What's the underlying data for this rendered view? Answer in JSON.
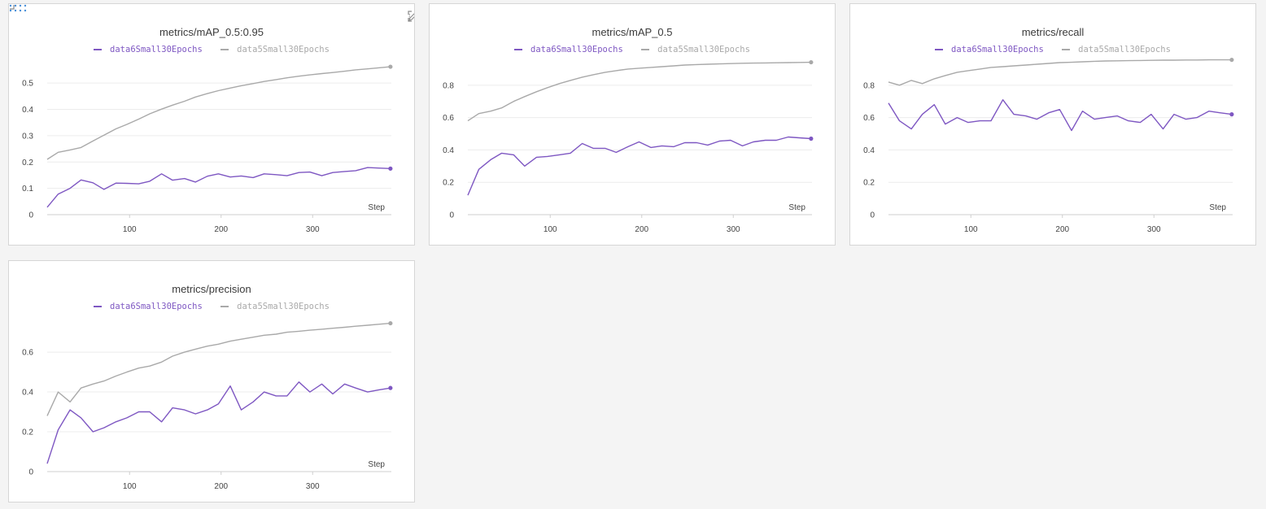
{
  "colors": {
    "series_a": "#7e57c2",
    "series_b": "#a9a9a9",
    "grid": "#ececec",
    "axis": "#cfcfcf",
    "text": "#444444",
    "handle": "#4a90d9",
    "tool_icon": "#8a8a8a"
  },
  "icons": {
    "drag": "drag-handle-icon",
    "edit": "pencil-icon",
    "fullscreen": "fullscreen-icon",
    "more": "more-vertical-icon"
  },
  "chart_data": [
    {
      "type": "line",
      "title": "metrics/mAP_0.5:0.95",
      "xlabel": "Step",
      "xlim": [
        10,
        386
      ],
      "ylim": [
        0,
        0.59
      ],
      "xticks": [
        100,
        200,
        300
      ],
      "yticks": [
        0,
        0.1,
        0.2,
        0.3,
        0.4,
        0.5
      ],
      "ytick_labels": [
        "0",
        "0.1",
        "0.2",
        "0.3",
        "0.4",
        "0.5"
      ],
      "grid": true,
      "legend": "top-center",
      "series": [
        {
          "name": "data6Small30Epochs",
          "x": [
            10,
            22,
            35,
            47,
            60,
            72,
            85,
            97,
            110,
            122,
            135,
            147,
            160,
            172,
            185,
            197,
            210,
            222,
            235,
            247,
            260,
            272,
            285,
            297,
            310,
            322,
            335,
            347,
            360,
            372,
            385
          ],
          "y": [
            0.028,
            0.078,
            0.1,
            0.132,
            0.121,
            0.096,
            0.12,
            0.119,
            0.117,
            0.127,
            0.155,
            0.131,
            0.137,
            0.124,
            0.146,
            0.155,
            0.143,
            0.147,
            0.141,
            0.155,
            0.152,
            0.148,
            0.16,
            0.162,
            0.148,
            0.16,
            0.164,
            0.167,
            0.179,
            0.177,
            0.175
          ]
        },
        {
          "name": "data5Small30Epochs",
          "x": [
            10,
            22,
            35,
            47,
            60,
            72,
            85,
            97,
            110,
            122,
            135,
            147,
            160,
            172,
            185,
            197,
            210,
            222,
            235,
            247,
            260,
            272,
            285,
            297,
            310,
            322,
            335,
            347,
            360,
            372,
            385
          ],
          "y": [
            0.21,
            0.237,
            0.246,
            0.255,
            0.28,
            0.302,
            0.326,
            0.343,
            0.363,
            0.383,
            0.401,
            0.416,
            0.431,
            0.447,
            0.46,
            0.471,
            0.481,
            0.49,
            0.498,
            0.506,
            0.513,
            0.52,
            0.526,
            0.531,
            0.536,
            0.54,
            0.545,
            0.55,
            0.554,
            0.558,
            0.562
          ]
        }
      ]
    },
    {
      "type": "line",
      "title": "metrics/mAP_0.5",
      "xlabel": "Step",
      "xlim": [
        10,
        386
      ],
      "ylim": [
        0,
        0.96
      ],
      "xticks": [
        100,
        200,
        300
      ],
      "yticks": [
        0,
        0.2,
        0.4,
        0.6,
        0.8
      ],
      "ytick_labels": [
        "0",
        "0.2",
        "0.4",
        "0.6",
        "0.8"
      ],
      "grid": true,
      "legend": "top-center",
      "series": [
        {
          "name": "data6Small30Epochs",
          "x": [
            10,
            22,
            35,
            47,
            60,
            72,
            85,
            97,
            110,
            122,
            135,
            147,
            160,
            172,
            185,
            197,
            210,
            222,
            235,
            247,
            260,
            272,
            285,
            297,
            310,
            322,
            335,
            347,
            360,
            372,
            385
          ],
          "y": [
            0.12,
            0.28,
            0.34,
            0.38,
            0.37,
            0.3,
            0.355,
            0.36,
            0.37,
            0.38,
            0.44,
            0.41,
            0.41,
            0.385,
            0.42,
            0.45,
            0.415,
            0.425,
            0.42,
            0.445,
            0.445,
            0.43,
            0.455,
            0.46,
            0.425,
            0.45,
            0.46,
            0.46,
            0.48,
            0.475,
            0.47
          ]
        },
        {
          "name": "data5Small30Epochs",
          "x": [
            10,
            22,
            35,
            47,
            60,
            72,
            85,
            97,
            110,
            122,
            135,
            147,
            160,
            172,
            185,
            197,
            210,
            222,
            235,
            247,
            260,
            272,
            285,
            297,
            310,
            322,
            335,
            347,
            360,
            372,
            385
          ],
          "y": [
            0.58,
            0.625,
            0.64,
            0.66,
            0.7,
            0.73,
            0.76,
            0.785,
            0.81,
            0.83,
            0.85,
            0.865,
            0.88,
            0.89,
            0.9,
            0.905,
            0.91,
            0.915,
            0.92,
            0.925,
            0.928,
            0.93,
            0.932,
            0.934,
            0.936,
            0.937,
            0.938,
            0.939,
            0.94,
            0.941,
            0.942
          ]
        }
      ]
    },
    {
      "type": "line",
      "title": "metrics/recall",
      "xlabel": "Step",
      "xlim": [
        10,
        386
      ],
      "ylim": [
        0,
        0.96
      ],
      "xticks": [
        100,
        200,
        300
      ],
      "yticks": [
        0,
        0.2,
        0.4,
        0.6,
        0.8
      ],
      "ytick_labels": [
        "0",
        "0.2",
        "0.4",
        "0.6",
        "0.8"
      ],
      "grid": true,
      "legend": "top-center",
      "series": [
        {
          "name": "data6Small30Epochs",
          "x": [
            10,
            22,
            35,
            47,
            60,
            72,
            85,
            97,
            110,
            122,
            135,
            147,
            160,
            172,
            185,
            197,
            210,
            222,
            235,
            247,
            260,
            272,
            285,
            297,
            310,
            322,
            335,
            347,
            360,
            372,
            385
          ],
          "y": [
            0.69,
            0.58,
            0.53,
            0.62,
            0.68,
            0.56,
            0.6,
            0.57,
            0.58,
            0.58,
            0.71,
            0.62,
            0.61,
            0.59,
            0.63,
            0.65,
            0.52,
            0.64,
            0.59,
            0.6,
            0.61,
            0.58,
            0.57,
            0.62,
            0.53,
            0.62,
            0.59,
            0.6,
            0.64,
            0.63,
            0.62
          ]
        },
        {
          "name": "data5Small30Epochs",
          "x": [
            10,
            22,
            35,
            47,
            60,
            72,
            85,
            97,
            110,
            122,
            135,
            147,
            160,
            172,
            185,
            197,
            210,
            222,
            235,
            247,
            260,
            272,
            285,
            297,
            310,
            322,
            335,
            347,
            360,
            372,
            385
          ],
          "y": [
            0.82,
            0.8,
            0.83,
            0.81,
            0.84,
            0.86,
            0.88,
            0.89,
            0.9,
            0.91,
            0.915,
            0.92,
            0.925,
            0.93,
            0.935,
            0.94,
            0.942,
            0.945,
            0.948,
            0.95,
            0.951,
            0.952,
            0.953,
            0.954,
            0.955,
            0.955,
            0.956,
            0.956,
            0.957,
            0.957,
            0.957
          ]
        }
      ]
    },
    {
      "type": "line",
      "title": "metrics/precision",
      "xlabel": "Step",
      "xlim": [
        10,
        386
      ],
      "ylim": [
        0,
        0.78
      ],
      "xticks": [
        100,
        200,
        300
      ],
      "yticks": [
        0,
        0.2,
        0.4,
        0.6
      ],
      "ytick_labels": [
        "0",
        "0.2",
        "0.4",
        "0.6"
      ],
      "grid": true,
      "legend": "top-center",
      "series": [
        {
          "name": "data6Small30Epochs",
          "x": [
            10,
            22,
            35,
            47,
            60,
            72,
            85,
            97,
            110,
            122,
            135,
            147,
            160,
            172,
            185,
            197,
            210,
            222,
            235,
            247,
            260,
            272,
            285,
            297,
            310,
            322,
            335,
            347,
            360,
            372,
            385
          ],
          "y": [
            0.04,
            0.21,
            0.31,
            0.27,
            0.2,
            0.22,
            0.25,
            0.27,
            0.3,
            0.3,
            0.25,
            0.32,
            0.31,
            0.29,
            0.31,
            0.34,
            0.43,
            0.31,
            0.35,
            0.4,
            0.38,
            0.38,
            0.45,
            0.4,
            0.44,
            0.39,
            0.44,
            0.42,
            0.4,
            0.41,
            0.42
          ]
        },
        {
          "name": "data5Small30Epochs",
          "x": [
            10,
            22,
            35,
            47,
            60,
            72,
            85,
            97,
            110,
            122,
            135,
            147,
            160,
            172,
            185,
            197,
            210,
            222,
            235,
            247,
            260,
            272,
            285,
            297,
            310,
            322,
            335,
            347,
            360,
            372,
            385
          ],
          "y": [
            0.28,
            0.4,
            0.35,
            0.42,
            0.44,
            0.455,
            0.48,
            0.5,
            0.52,
            0.53,
            0.55,
            0.58,
            0.6,
            0.615,
            0.63,
            0.64,
            0.655,
            0.665,
            0.675,
            0.685,
            0.69,
            0.7,
            0.705,
            0.71,
            0.715,
            0.72,
            0.725,
            0.73,
            0.735,
            0.74,
            0.745
          ]
        }
      ]
    }
  ]
}
